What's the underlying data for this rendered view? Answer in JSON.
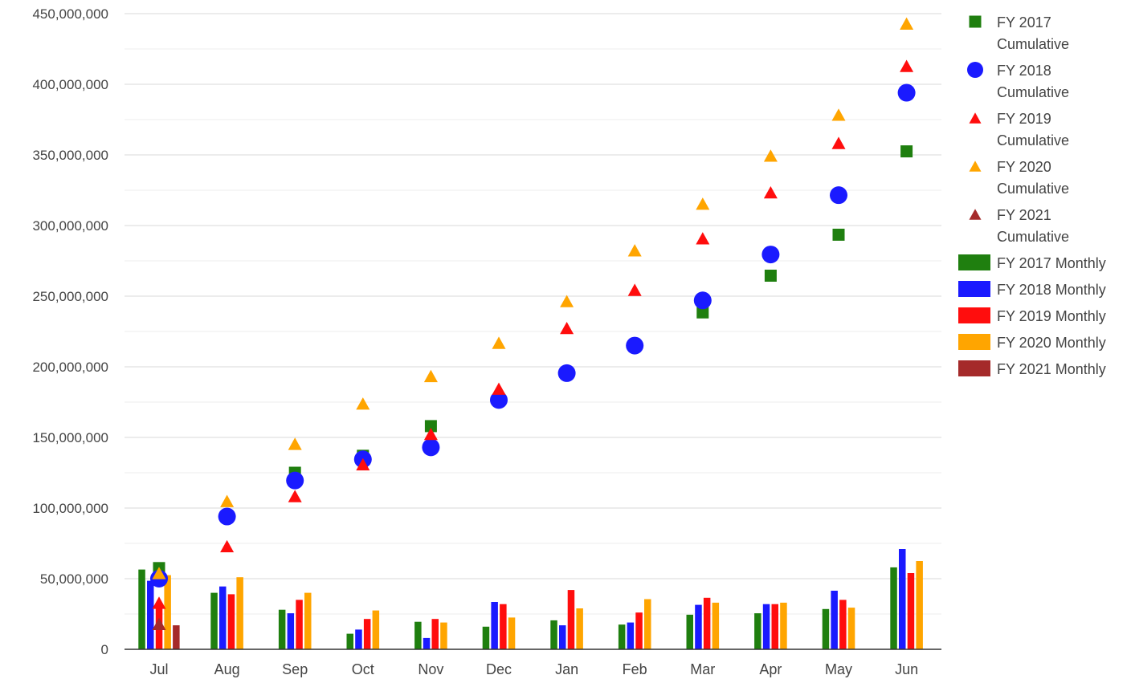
{
  "chart_data": {
    "type": "bar",
    "categories": [
      "Jul",
      "Aug",
      "Sep",
      "Oct",
      "Nov",
      "Dec",
      "Jan",
      "Feb",
      "Mar",
      "Apr",
      "May",
      "Jun"
    ],
    "ylim": [
      0,
      450000000
    ],
    "yticks": [
      0,
      50000000,
      100000000,
      150000000,
      200000000,
      250000000,
      300000000,
      350000000,
      400000000,
      450000000
    ],
    "ytick_labels": [
      "0",
      "50,000,000",
      "100,000,000",
      "150,000,000",
      "200,000,000",
      "250,000,000",
      "300,000,000",
      "350,000,000",
      "400,000,000",
      "450,000,000"
    ],
    "grid": true,
    "legend_position": "right",
    "title": "",
    "xlabel": "",
    "ylabel": "",
    "bar_series": [
      {
        "name": "FY 2017 Monthly",
        "color": "#1f7f0f",
        "values": [
          56500000,
          40000000,
          28000000,
          11000000,
          19500000,
          16000000,
          20500000,
          17500000,
          24500000,
          25500000,
          28500000,
          58000000
        ]
      },
      {
        "name": "FY 2018 Monthly",
        "color": "#1a1aff",
        "values": [
          48500000,
          44500000,
          25500000,
          14000000,
          8000000,
          33500000,
          17000000,
          19000000,
          31500000,
          32000000,
          41500000,
          71000000
        ]
      },
      {
        "name": "FY 2019 Monthly",
        "color": "#ff0d0d",
        "values": [
          32000000,
          39000000,
          35000000,
          21500000,
          21500000,
          32000000,
          42000000,
          26000000,
          36500000,
          32000000,
          35000000,
          54000000
        ]
      },
      {
        "name": "FY 2020 Monthly",
        "color": "#ffa500",
        "values": [
          52500000,
          51000000,
          40000000,
          27500000,
          19000000,
          22500000,
          29000000,
          35500000,
          33000000,
          33000000,
          29500000,
          62500000
        ]
      },
      {
        "name": "FY 2021 Monthly",
        "color": "#a52a2a",
        "values": [
          17000000,
          null,
          null,
          null,
          null,
          null,
          null,
          null,
          null,
          null,
          null,
          null
        ]
      }
    ],
    "cumulative_series": [
      {
        "name": "FY 2017\nCumulative",
        "color": "#1f7f0f",
        "marker": "square",
        "values": [
          57500000,
          null,
          125000000,
          137000000,
          158000000,
          176500000,
          null,
          null,
          238500000,
          264500000,
          293500000,
          352500000
        ]
      },
      {
        "name": "FY 2018\nCumulative",
        "color": "#1a1aff",
        "marker": "circle",
        "values": [
          50000000,
          94000000,
          119500000,
          134500000,
          143000000,
          176500000,
          195500000,
          215000000,
          247000000,
          279500000,
          321500000,
          394000000
        ]
      },
      {
        "name": "FY 2019\nCumulative",
        "color": "#ff0d0d",
        "marker": "triangle",
        "values": [
          33000000,
          73000000,
          108500000,
          131000000,
          152500000,
          184500000,
          227500000,
          254500000,
          291000000,
          323500000,
          358500000,
          413000000
        ]
      },
      {
        "name": "FY 2020\nCumulative",
        "color": "#ffa500",
        "marker": "triangle",
        "values": [
          54000000,
          105000000,
          145500000,
          174000000,
          193500000,
          217000000,
          246500000,
          282500000,
          315500000,
          349500000,
          378500000,
          443000000
        ]
      },
      {
        "name": "FY 2021\nCumulative",
        "color": "#a52a2a",
        "marker": "triangle",
        "values": [
          18000000,
          null,
          null,
          null,
          null,
          null,
          null,
          null,
          null,
          null,
          null,
          null
        ]
      }
    ]
  }
}
